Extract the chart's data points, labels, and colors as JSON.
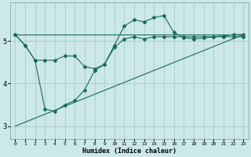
{
  "xlabel": "Humidex (Indice chaleur)",
  "background_color": "#cce8e8",
  "grid_color": "#aacccc",
  "line_color": "#1a6b5a",
  "xlim": [
    -0.5,
    23.5
  ],
  "ylim": [
    2.7,
    5.9
  ],
  "yticks": [
    3,
    4,
    5
  ],
  "xticks": [
    0,
    1,
    2,
    3,
    4,
    5,
    6,
    7,
    8,
    9,
    10,
    11,
    12,
    13,
    14,
    15,
    16,
    17,
    18,
    19,
    20,
    21,
    22,
    23
  ],
  "line1_x": [
    0,
    1,
    2,
    3,
    4,
    5,
    6,
    7,
    8,
    9,
    10,
    11,
    12,
    13,
    14,
    15,
    16,
    17,
    18,
    19,
    20,
    21,
    22,
    23
  ],
  "line1_y": [
    5.15,
    4.9,
    4.55,
    4.55,
    4.55,
    4.65,
    4.65,
    4.4,
    4.35,
    4.45,
    4.85,
    5.05,
    5.1,
    5.05,
    5.1,
    5.1,
    5.1,
    5.1,
    5.1,
    5.1,
    5.1,
    5.1,
    5.1,
    5.1
  ],
  "line2_x": [
    0,
    1,
    2,
    3,
    4,
    5,
    6,
    7,
    8,
    9,
    10,
    11,
    12,
    13,
    14,
    15,
    16,
    17,
    18,
    19,
    20,
    21,
    22,
    23
  ],
  "line2_y": [
    5.15,
    4.9,
    4.55,
    3.4,
    3.35,
    3.5,
    3.6,
    3.85,
    4.3,
    4.45,
    4.9,
    5.35,
    5.5,
    5.45,
    5.55,
    5.6,
    5.2,
    5.08,
    5.05,
    5.07,
    5.1,
    5.12,
    5.15,
    5.15
  ],
  "line3_x": [
    0,
    23
  ],
  "line3_y": [
    3.0,
    5.15
  ],
  "line4_x": [
    0,
    23
  ],
  "line4_y": [
    5.15,
    5.15
  ]
}
